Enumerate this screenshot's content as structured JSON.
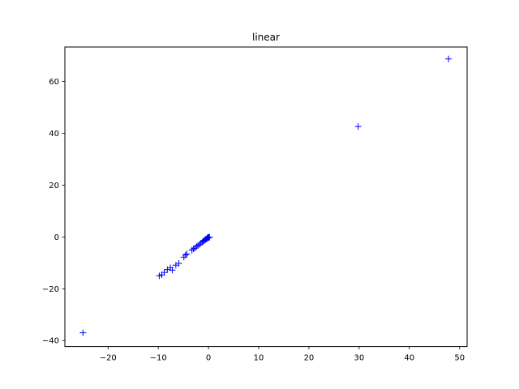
{
  "chart_data": {
    "type": "scatter",
    "title": "linear",
    "xlabel": "",
    "ylabel": "",
    "xlim": [
      -28.6,
      51.5
    ],
    "ylim": [
      -42.3,
      73.3
    ],
    "xticks": [
      -20,
      -10,
      0,
      10,
      20,
      30,
      40,
      50
    ],
    "yticks": [
      -40,
      -20,
      0,
      20,
      40,
      60
    ],
    "grid": false,
    "marker": "+",
    "color": "#0000ff",
    "series": [
      {
        "x": [
          -25.0,
          -9.8,
          -9.3,
          -8.8,
          -8.2,
          -7.6,
          -7.2,
          -6.5,
          -5.9,
          -4.9,
          -4.6,
          -4.3,
          -3.3,
          -3.0,
          -2.7,
          -2.4,
          -2.1,
          -1.8,
          -1.5,
          -1.2,
          -1.0,
          -0.8,
          -0.6,
          -0.45,
          -0.3,
          -0.2,
          -0.1,
          0.0,
          0.1,
          0.2,
          29.8,
          47.8
        ],
        "y": [
          -37.0,
          -15.0,
          -14.6,
          -13.7,
          -12.6,
          -11.9,
          -12.8,
          -10.9,
          -10.2,
          -7.8,
          -7.0,
          -6.6,
          -5.1,
          -4.6,
          -4.3,
          -3.7,
          -3.3,
          -2.9,
          -2.4,
          -2.0,
          -1.6,
          -1.3,
          -1.0,
          -0.8,
          -0.6,
          -0.4,
          -0.25,
          -0.1,
          -0.2,
          -0.1,
          42.6,
          68.7
        ]
      }
    ]
  }
}
